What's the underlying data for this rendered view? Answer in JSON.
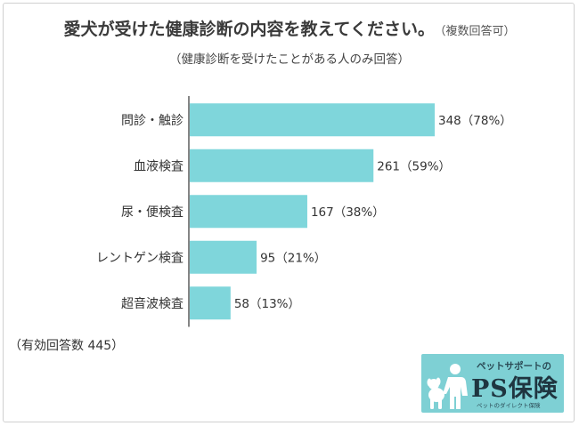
{
  "title": "愛犬が受けた健康診断の内容を教えてください。",
  "title_note": "（複数回答可）",
  "subtitle": "（健康診断を受けたことがある人のみ回答）",
  "valid_count": "（有効回答数 445）",
  "logo": {
    "top": "ペットサポートの",
    "main": "PS保険",
    "sub": "ペットのダイレクト保険"
  },
  "colors": {
    "bar": "#7fd6db",
    "axis": "#444444"
  },
  "chart_data": {
    "type": "bar",
    "orientation": "horizontal",
    "categories": [
      "問診・触診",
      "血液検査",
      "尿・便検査",
      "レントゲン検査",
      "超音波検査"
    ],
    "values": [
      348,
      261,
      167,
      95,
      58
    ],
    "percents": [
      "78%",
      "59%",
      "38%",
      "21%",
      "13%"
    ],
    "data_labels": [
      "348（78%）",
      "261（59%）",
      "167（38%）",
      "95（21%）",
      "58（13%）"
    ],
    "xlim": [
      0,
      445
    ],
    "grid": false,
    "legend": "none"
  }
}
